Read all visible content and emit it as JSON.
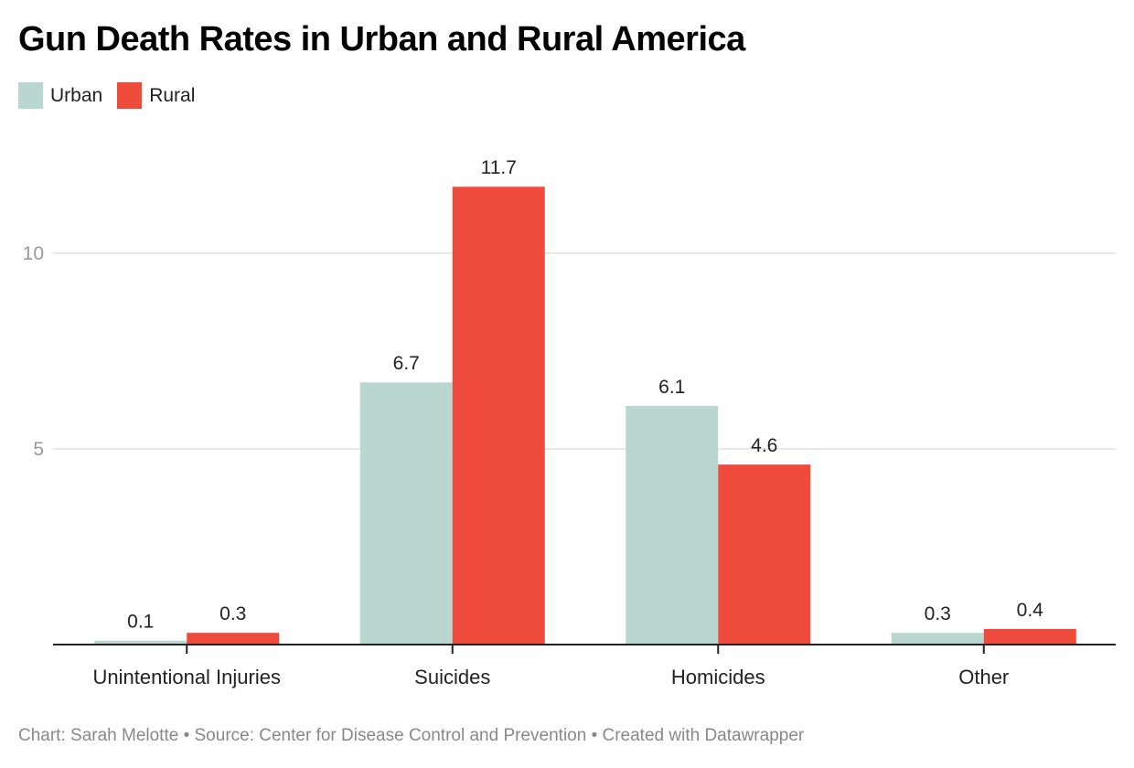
{
  "chart_data": {
    "type": "bar",
    "title": "Gun Death Rates in Urban and Rural America",
    "categories": [
      "Unintentional Injuries",
      "Suicides",
      "Homicides",
      "Other"
    ],
    "series": [
      {
        "name": "Urban",
        "color": "#b9d6d1",
        "values": [
          0.1,
          6.7,
          6.1,
          0.3
        ]
      },
      {
        "name": "Rural",
        "color": "#ef4b3d",
        "values": [
          0.3,
          11.7,
          4.6,
          0.4
        ]
      }
    ],
    "value_labels": {
      "Urban": [
        "0.1",
        "6.7",
        "6.1",
        "0.3"
      ],
      "Rural": [
        "0.3",
        "11.7",
        "4.6",
        "0.4"
      ]
    },
    "yticks": [
      0,
      5,
      10
    ],
    "ytick_labels": [
      "",
      "5",
      "10"
    ],
    "ylim": [
      0,
      12
    ],
    "xlabel": "",
    "ylabel": "",
    "grid": true,
    "legend": "top-left"
  },
  "footer": "Chart: Sarah Melotte • Source: Center for Disease Control and Prevention • Created with Datawrapper"
}
